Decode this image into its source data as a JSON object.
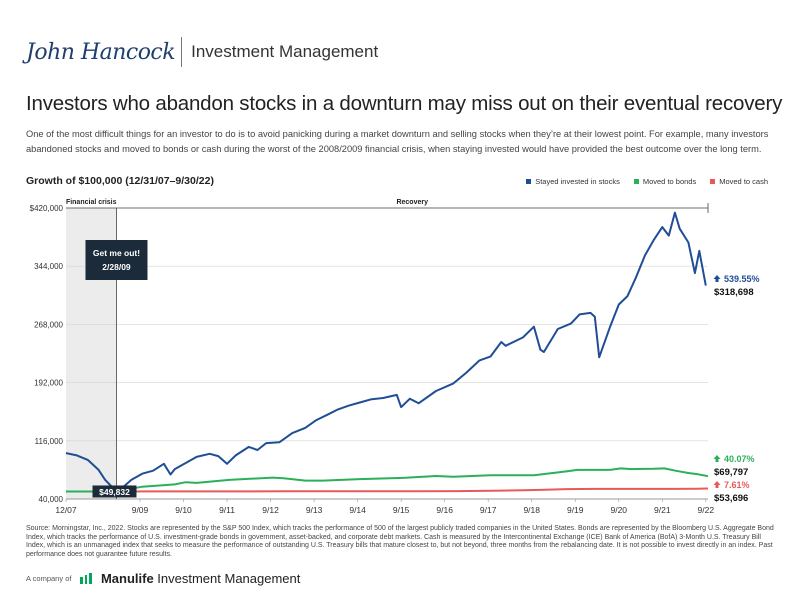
{
  "header": {
    "logo_text": "John Hancock",
    "subtitle": "Investment Management"
  },
  "title": "Investors who abandon stocks in a downturn may miss out on their eventual recovery",
  "intro": "One of the most difficult things for an investor to do is to avoid panicking during a market downturn and selling stocks when they’re at their lowest point. For example, many investors abandoned stocks and moved to bonds or cash during the worst of the 2008/2009 financial crisis, when staying invested would have provided the best outcome over the long term.",
  "growth_label": "Growth of $100,000 (12/31/07–9/30/22)",
  "legend": [
    {
      "name": "Stayed invested in stocks",
      "color": "#1f4e96"
    },
    {
      "name": "Moved to bonds",
      "color": "#2bb05a"
    },
    {
      "name": "Moved to cash",
      "color": "#e8595a"
    }
  ],
  "colors": {
    "stocks": "#1f4e96",
    "bonds": "#2bb05a",
    "cash": "#e8595a",
    "crisis_band": "#ececec"
  },
  "callout": {
    "title": "Get me out!",
    "date": "2/28/09"
  },
  "chart_data": {
    "type": "line",
    "x_unit": "years",
    "x_range": [
      2008.0,
      2022.75
    ],
    "ylim": [
      40000,
      420000
    ],
    "y_ticks": [
      40000,
      116000,
      192000,
      268000,
      344000,
      420000
    ],
    "y_tick_labels": [
      "40,000",
      "116,000",
      "192,000",
      "268,000",
      "344,000",
      "$420,000"
    ],
    "x_ticks": [
      2008.0,
      2009.7,
      2010.7,
      2011.7,
      2012.7,
      2013.7,
      2014.7,
      2015.7,
      2016.7,
      2017.7,
      2018.7,
      2019.7,
      2020.7,
      2021.7,
      2022.7
    ],
    "x_tick_labels": [
      "12/07",
      "9/09",
      "9/10",
      "9/11",
      "9/12",
      "9/13",
      "9/14",
      "9/15",
      "9/16",
      "9/17",
      "9/18",
      "9/19",
      "9/20",
      "9/21",
      "9/22"
    ],
    "periods": [
      {
        "label": "Financial crisis",
        "start": 2008.0,
        "end": 2009.16
      },
      {
        "label": "Recovery",
        "start": 2009.16,
        "end": 2022.75
      }
    ],
    "series": [
      {
        "name": "Stayed invested in stocks",
        "key": "stocks",
        "x": [
          2008.0,
          2008.25,
          2008.5,
          2008.75,
          2008.9,
          2009.16,
          2009.3,
          2009.5,
          2009.75,
          2010.0,
          2010.25,
          2010.4,
          2010.5,
          2010.75,
          2011.0,
          2011.3,
          2011.5,
          2011.7,
          2011.9,
          2012.2,
          2012.4,
          2012.6,
          2012.9,
          2013.2,
          2013.5,
          2013.75,
          2014.0,
          2014.25,
          2014.5,
          2014.75,
          2015.0,
          2015.3,
          2015.6,
          2015.7,
          2015.9,
          2016.1,
          2016.5,
          2016.9,
          2017.2,
          2017.5,
          2017.75,
          2018.0,
          2018.1,
          2018.5,
          2018.75,
          2018.9,
          2018.98,
          2019.3,
          2019.6,
          2019.8,
          2020.05,
          2020.15,
          2020.25,
          2020.5,
          2020.7,
          2020.9,
          2021.1,
          2021.3,
          2021.5,
          2021.7,
          2021.85,
          2021.99,
          2022.1,
          2022.3,
          2022.45,
          2022.55,
          2022.7
        ],
        "values": [
          100000,
          97000,
          91000,
          78000,
          65000,
          49832,
          55000,
          65000,
          73000,
          77000,
          86000,
          72000,
          79000,
          87000,
          95000,
          99000,
          96000,
          86000,
          97000,
          108000,
          104000,
          113000,
          114000,
          126000,
          133000,
          143000,
          150000,
          157000,
          162000,
          166000,
          170000,
          172000,
          176000,
          160000,
          171000,
          165000,
          181000,
          191000,
          205000,
          221000,
          226000,
          245000,
          240000,
          251000,
          265000,
          235000,
          232000,
          262000,
          269000,
          281000,
          283000,
          278000,
          225000,
          265000,
          294000,
          305000,
          330000,
          358000,
          378000,
          395000,
          384000,
          414000,
          393000,
          375000,
          335000,
          364000,
          318698
        ],
        "end_value": "$318,698",
        "end_change": "539.55%"
      },
      {
        "name": "Moved to bonds",
        "key": "bonds",
        "x": [
          2008.0,
          2009.16,
          2009.75,
          2010.5,
          2010.75,
          2011.0,
          2011.75,
          2012.75,
          2013.0,
          2013.5,
          2013.9,
          2014.75,
          2015.75,
          2016.5,
          2016.9,
          2017.75,
          2018.75,
          2019.5,
          2019.75,
          2020.5,
          2020.75,
          2021.0,
          2021.5,
          2021.75,
          2022.0,
          2022.3,
          2022.5,
          2022.75
        ],
        "values": [
          49832,
          49832,
          56000,
          59000,
          62000,
          61000,
          65000,
          68000,
          67000,
          64000,
          64000,
          66000,
          67500,
          70000,
          69000,
          71000,
          71000,
          76000,
          78000,
          78000,
          80000,
          79000,
          79500,
          80000,
          77000,
          74000,
          72500,
          69797
        ],
        "end_value": "$69,797",
        "end_change": "40.07%"
      },
      {
        "name": "Moved to cash",
        "key": "cash",
        "x": [
          2008.0,
          2009.16,
          2010.0,
          2011.0,
          2012.0,
          2013.0,
          2014.0,
          2015.0,
          2016.0,
          2017.0,
          2017.8,
          2018.5,
          2019.0,
          2019.5,
          2020.2,
          2021.0,
          2022.0,
          2022.5,
          2022.75
        ],
        "values": [
          49832,
          49832,
          49900,
          49950,
          49980,
          50000,
          50020,
          50040,
          50100,
          50300,
          50700,
          51400,
          52200,
          52900,
          53200,
          53230,
          53250,
          53450,
          53696
        ],
        "end_value": "$53,696",
        "end_change": "7.61%"
      }
    ],
    "low_value_label": "$49,832",
    "grid": "horizontal"
  },
  "source": "Source: Morningstar, Inc., 2022. Stocks are represented by the S&P 500 Index, which tracks the performance of 500 of the largest publicly traded companies in the United States. Bonds are represented by the Bloomberg U.S. Aggregate Bond Index, which tracks the performance of U.S. investment-grade bonds in government, asset-backed, and corporate debt markets. Cash is measured by the Intercontinental Exchange (ICE) Bank of America (BofA) 3-Month U.S. Treasury Bill Index, which is an unmanaged index that seeks to measure the performance of outstanding U.S. Treasury bills that mature closest to, but not beyond, three months from the rebalancing date. It is not possible to invest directly in an index. Past performance does not guarantee future results.",
  "footer": {
    "company_of": "A company of",
    "brand_bold": "Manulife",
    "brand_rest": " Investment Management"
  }
}
